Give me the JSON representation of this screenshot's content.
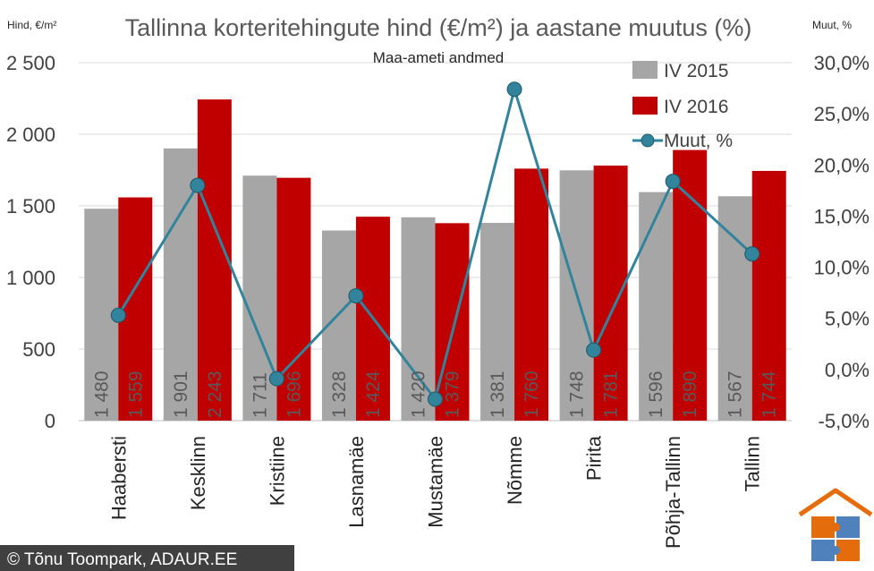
{
  "chart_data": {
    "type": "bar",
    "title": "Tallinna korteritehingute hind (€/m²) ja aastane muutus (%)",
    "subtitle": "Maa-ameti andmed",
    "ylabel_left": "Hind, €/m²",
    "ylabel_right": "Muut, %",
    "categories": [
      "Haabersti",
      "Kesklinn",
      "Kristiine",
      "Lasnamäe",
      "Mustamäe",
      "Nõmme",
      "Pirita",
      "Põhja-Tallinn",
      "Tallinn"
    ],
    "series": [
      {
        "name": "IV 2015",
        "type": "bar",
        "axis": "left",
        "color": "#A6A6A6",
        "values": [
          1480,
          1901,
          1711,
          1328,
          1420,
          1381,
          1748,
          1596,
          1567
        ],
        "labels": [
          "1 480",
          "1 901",
          "1 711",
          "1 328",
          "1 420",
          "1 381",
          "1 748",
          "1 596",
          "1 567"
        ]
      },
      {
        "name": "IV 2016",
        "type": "bar",
        "axis": "left",
        "color": "#C00000",
        "values": [
          1559,
          2243,
          1696,
          1424,
          1379,
          1760,
          1781,
          1890,
          1744
        ],
        "labels": [
          "1 559",
          "2 243",
          "1 696",
          "1 424",
          "1 379",
          "1 760",
          "1 781",
          "1 890",
          "1 744"
        ]
      },
      {
        "name": "Muut, %",
        "type": "line",
        "axis": "right",
        "color": "#31849B",
        "values": [
          5.3,
          18.0,
          -0.9,
          7.2,
          -2.9,
          27.4,
          1.9,
          18.4,
          11.3
        ]
      }
    ],
    "ylim_left": [
      0,
      2500
    ],
    "yticks_left": [
      0,
      500,
      1000,
      1500,
      2000,
      2500
    ],
    "yticklabels_left": [
      "0",
      "500",
      "1 000",
      "1 500",
      "2 000",
      "2 500"
    ],
    "ylim_right": [
      -5,
      30
    ],
    "yticks_right": [
      -5,
      0,
      5,
      10,
      15,
      20,
      25,
      30
    ],
    "yticklabels_right": [
      "-5,0%",
      "0,0%",
      "5,0%",
      "10,0%",
      "15,0%",
      "20,0%",
      "25,0%",
      "30,0%"
    ],
    "grid": true,
    "legend": "top-right"
  },
  "footer": {
    "copyright": "© Tõnu Toompark, ADAUR.EE"
  },
  "logo": {
    "icon": "house-puzzle-logo-icon"
  }
}
